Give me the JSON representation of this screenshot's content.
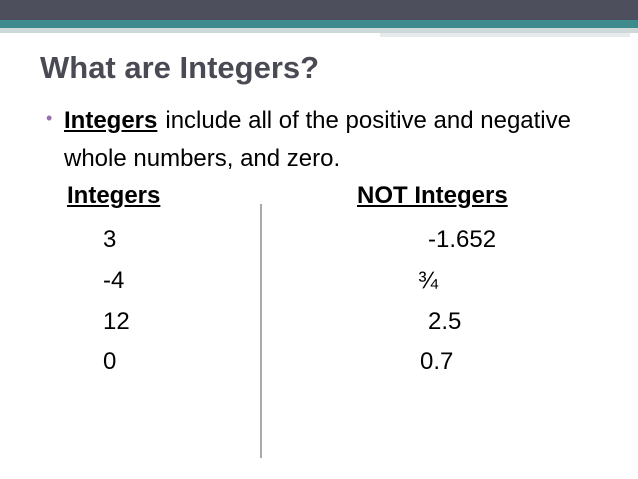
{
  "title": "What are Integers?",
  "bullet": {
    "term": "Integers",
    "text": "include all of the positive and negative whole numbers, and zero."
  },
  "columns": [
    {
      "header": "Integers",
      "items": [
        "3",
        "-4",
        "12",
        "0"
      ]
    },
    {
      "header": "NOT Integers",
      "items": [
        "-1.652",
        "¾",
        "2.5",
        "0.7"
      ]
    }
  ]
}
